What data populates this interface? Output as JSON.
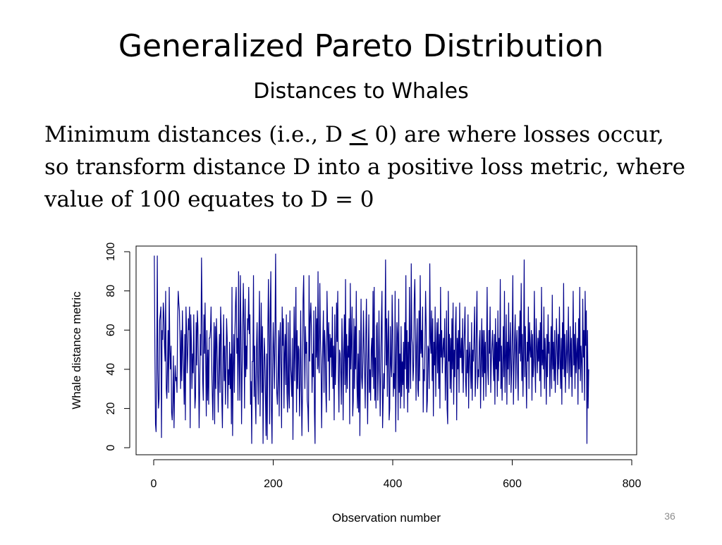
{
  "slide": {
    "title": "Generalized Pareto Distribution",
    "subtitle": "Distances to Whales",
    "body_part1": "Minimum distances (i.e., D ",
    "body_leq": "<",
    "body_part2": " 0) are where losses occur, so transform distance D into a positive loss metric, where value of 100 equates to D = 0",
    "slide_number": "36"
  },
  "colors": {
    "series": "#00008B",
    "axis": "#000000"
  },
  "chart_data": {
    "type": "line",
    "title": "",
    "xlabel": "Observation number",
    "ylabel": "Whale distance metric",
    "xlim": [
      0,
      800
    ],
    "ylim": [
      0,
      100
    ],
    "xticks": [
      0,
      200,
      400,
      600,
      800
    ],
    "yticks": [
      0,
      20,
      40,
      60,
      80,
      100
    ],
    "grid": false,
    "series": [
      {
        "values": [
          98,
          50,
          12,
          8,
          35,
          98,
          40,
          20,
          25,
          65,
          68,
          72,
          5,
          60,
          55,
          74,
          68,
          52,
          44,
          80,
          30,
          25,
          40,
          60,
          28,
          82,
          50,
          40,
          52,
          18,
          14,
          24,
          47,
          10,
          32,
          42,
          34,
          36,
          28,
          64,
          80,
          74,
          70,
          54,
          30,
          60,
          34,
          70,
          50,
          40,
          22,
          58,
          14,
          72,
          60,
          38,
          48,
          66,
          60,
          72,
          10,
          68,
          55,
          30,
          48,
          38,
          68,
          40,
          20,
          26,
          64,
          42,
          70,
          62,
          40,
          10,
          32,
          58,
          47,
          97,
          66,
          34,
          24,
          68,
          48,
          74,
          44,
          16,
          60,
          24,
          50,
          22,
          56,
          56,
          60,
          72,
          44,
          28,
          14,
          40,
          64,
          12,
          62,
          30,
          66,
          52,
          36,
          18,
          44,
          58,
          28,
          72,
          60,
          24,
          10,
          44,
          68,
          34,
          52,
          22,
          40,
          66,
          56,
          20,
          40,
          32,
          54,
          30,
          48,
          12,
          82,
          6,
          42,
          58,
          28,
          60,
          74,
          82,
          48,
          56,
          24,
          90,
          44,
          24,
          88,
          62,
          12,
          40,
          62,
          84,
          60,
          20,
          76,
          36,
          52,
          40,
          66,
          60,
          82,
          58,
          68,
          22,
          34,
          2,
          44,
          44,
          88,
          26,
          52,
          26,
          12,
          50,
          64,
          36,
          22,
          56,
          80,
          16,
          50,
          74,
          28,
          62,
          2,
          34,
          56,
          46,
          26,
          6,
          48,
          4,
          60,
          86,
          52,
          12,
          70,
          90,
          20,
          2,
          40,
          64,
          50,
          30,
          60,
          99,
          48,
          28,
          22,
          36,
          60,
          16,
          56,
          64,
          40,
          10,
          72,
          52,
          66,
          20,
          48,
          58,
          32,
          68,
          28,
          18,
          64,
          28,
          20,
          70,
          42,
          36,
          26,
          56,
          4,
          40,
          72,
          34,
          56,
          82,
          18,
          60,
          30,
          52,
          50,
          16,
          32,
          70,
          34,
          6,
          28,
          76,
          88,
          54,
          30,
          62,
          48,
          54,
          24,
          20,
          8,
          88,
          44,
          66,
          74,
          60,
          28,
          48,
          36,
          70,
          18,
          2,
          72,
          46,
          66,
          40,
          90,
          42,
          38,
          84,
          56,
          46,
          10,
          36,
          54,
          70,
          28,
          60,
          52,
          28,
          18,
          80,
          62,
          44,
          64,
          24,
          58,
          46,
          56,
          36,
          72,
          30,
          52,
          14,
          68,
          32,
          44,
          74,
          54,
          80,
          36,
          18,
          50,
          48,
          38,
          22,
          66,
          50,
          14,
          46,
          68,
          32,
          86,
          28,
          58,
          30,
          52,
          46,
          66,
          12,
          84,
          40,
          54,
          72,
          16,
          24,
          66,
          30,
          62,
          40,
          80,
          34,
          20,
          48,
          18,
          60,
          6,
          44,
          76,
          36,
          30,
          44,
          70,
          52,
          38,
          20,
          58,
          76,
          40,
          12,
          44,
          68,
          28,
          40,
          24,
          50,
          56,
          36,
          80,
          30,
          82,
          24,
          46,
          20,
          62,
          64,
          24,
          40,
          70,
          40,
          16,
          42,
          64,
          80,
          10,
          24,
          38,
          30,
          56,
          96,
          42,
          66,
          26,
          54,
          70,
          14,
          20,
          62,
          42,
          36,
          78,
          60,
          26,
          38,
          30,
          80,
          8,
          42,
          64,
          58,
          14,
          76,
          28,
          48,
          20,
          62,
          26,
          44,
          32,
          54,
          20,
          64,
          40,
          88,
          30,
          60,
          18,
          54,
          28,
          82,
          46,
          30,
          94,
          56,
          52,
          34,
          42,
          76,
          86,
          60,
          24,
          52,
          66,
          30,
          26,
          70,
          34,
          88,
          48,
          60,
          46,
          72,
          18,
          40,
          34,
          54,
          80,
          62,
          18,
          24,
          52,
          50,
          30,
          94,
          56,
          48,
          70,
          34,
          66,
          16,
          54,
          42,
          72,
          26,
          50,
          64,
          38,
          66,
          30,
          58,
          20,
          82,
          46,
          60,
          38,
          50,
          56,
          46,
          66,
          24,
          40,
          70,
          20,
          12,
          80,
          44,
          58,
          30,
          56,
          28,
          66,
          40,
          74,
          22,
          50,
          36,
          62,
          72,
          14,
          56,
          40,
          60,
          28,
          74,
          46,
          46,
          56,
          38,
          66,
          28,
          48,
          60,
          72,
          34,
          26,
          50,
          38,
          68,
          20,
          46,
          54,
          40,
          30,
          64,
          24,
          50,
          44,
          56,
          72,
          26,
          36,
          62,
          80,
          30,
          40,
          36,
          54,
          60,
          20,
          44,
          66,
          36,
          60,
          24,
          60,
          38,
          54,
          26,
          50,
          82,
          40,
          32,
          60,
          48,
          72,
          28,
          44,
          52,
          60,
          46,
          34,
          58,
          22,
          66,
          40,
          54,
          26,
          70,
          34,
          56,
          44,
          86,
          30,
          52,
          24,
          42,
          62,
          36,
          80,
          28,
          46,
          68,
          22,
          54,
          40,
          74,
          32,
          50,
          64,
          28,
          40,
          58,
          88,
          22,
          42,
          56,
          68,
          30,
          52,
          60,
          38,
          24,
          62,
          48,
          70,
          44,
          84,
          34,
          58,
          26,
          50,
          96,
          36,
          62,
          40,
          20,
          54,
          44,
          72,
          30,
          64,
          50,
          46,
          60,
          24,
          58,
          36,
          44,
          80,
          42,
          28,
          66,
          52,
          38,
          56,
          44,
          60,
          34,
          64,
          26,
          82,
          42,
          50,
          40,
          72,
          30,
          56,
          46,
          22,
          58,
          36,
          68,
          48,
          54,
          26,
          44,
          62,
          30,
          78,
          40,
          54,
          34,
          60,
          28,
          44,
          66,
          52,
          32,
          58,
          40,
          72,
          46,
          30,
          56,
          22,
          64,
          40,
          84,
          36,
          58,
          28,
          46,
          60,
          38,
          50,
          72,
          30,
          44,
          62,
          36,
          56,
          26,
          48,
          80,
          42,
          58,
          30,
          64,
          38,
          48,
          56,
          22,
          66,
          40,
          82,
          34,
          52,
          44,
          28,
          76,
          46,
          60,
          24,
          80,
          52,
          70,
          2,
          60,
          20,
          40
        ]
      }
    ]
  }
}
